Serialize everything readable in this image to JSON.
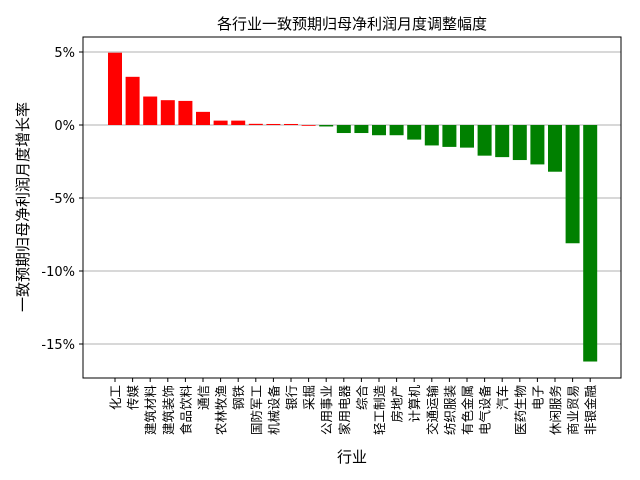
{
  "chart_data": {
    "type": "bar",
    "title": "各行业一致预期归母净利润月度调整幅度",
    "xlabel": "行业",
    "ylabel": "一致预期归母净利润月度增长率",
    "ylim": [
      -17.3,
      6.0
    ],
    "yticks": [
      5,
      0,
      -5,
      -10,
      -15
    ],
    "ytick_labels": [
      "5%",
      "0%",
      "-5%",
      "-10%",
      "-15%"
    ],
    "grid": "horizontal",
    "legend": null,
    "colors": {
      "positive": "#ff0000",
      "negative": "#008000",
      "grid": "#b0b0b0"
    },
    "categories": [
      "化工",
      "传媒",
      "建筑材料",
      "建筑装饰",
      "食品饮料",
      "通信",
      "农林牧渔",
      "钢铁",
      "国防军工",
      "机械设备",
      "银行",
      "采掘",
      "公用事业",
      "家用电器",
      "综合",
      "轻工制造",
      "房地产",
      "计算机",
      "交通运输",
      "纺织服装",
      "有色金属",
      "电气设备",
      "汽车",
      "医药生物",
      "电子",
      "休闲服务",
      "商业贸易",
      "非银金融"
    ],
    "values": [
      4.95,
      3.3,
      1.95,
      1.7,
      1.65,
      0.9,
      0.3,
      0.3,
      0.08,
      0.07,
      0.07,
      0.0,
      -0.1,
      -0.55,
      -0.55,
      -0.7,
      -0.7,
      -1.0,
      -1.4,
      -1.5,
      -1.55,
      -2.1,
      -2.2,
      -2.4,
      -2.7,
      -3.2,
      -8.1,
      -16.2
    ]
  }
}
